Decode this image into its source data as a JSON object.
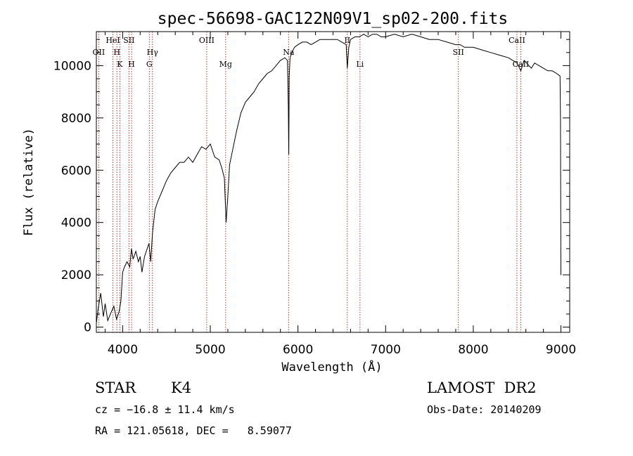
{
  "chart_data": {
    "type": "line",
    "title": "spec-56698-GAC122N09V1_sp02-200.fits",
    "xlabel": "Wavelength (Å)",
    "ylabel": "Flux (relative)",
    "xlim": [
      3700,
      9100
    ],
    "ylim": [
      -200,
      11300
    ],
    "x_ticks": [
      4000,
      5000,
      6000,
      7000,
      8000,
      9000
    ],
    "y_ticks": [
      0,
      2000,
      4000,
      6000,
      8000,
      10000
    ],
    "grid": false,
    "series": [
      {
        "x": [
          3700,
          3720,
          3750,
          3780,
          3800,
          3830,
          3860,
          3900,
          3930,
          3960,
          3980,
          4000,
          4020,
          4050,
          4080,
          4100,
          4120,
          4150,
          4180,
          4200,
          4220,
          4250,
          4270,
          4300,
          4320,
          4340,
          4370,
          4400,
          4450,
          4500,
          4550,
          4600,
          4650,
          4700,
          4750,
          4800,
          4850,
          4900,
          4950,
          5000,
          5050,
          5100,
          5130,
          5160,
          5180,
          5200,
          5220,
          5250,
          5300,
          5350,
          5400,
          5450,
          5500,
          5550,
          5600,
          5650,
          5700,
          5750,
          5800,
          5850,
          5880,
          5890,
          5895,
          5900,
          5910,
          5930,
          5960,
          6000,
          6050,
          6100,
          6150,
          6200,
          6250,
          6300,
          6350,
          6400,
          6450,
          6500,
          6550,
          6563,
          6580,
          6600,
          6650,
          6700,
          6750,
          6800,
          6850,
          6900,
          6950,
          7000,
          7100,
          7200,
          7300,
          7400,
          7500,
          7600,
          7700,
          7800,
          7850,
          7900,
          8000,
          8100,
          8200,
          8300,
          8400,
          8450,
          8500,
          8542,
          8580,
          8662,
          8700,
          8750,
          8800,
          8850,
          8900,
          8950,
          8990,
          8995,
          9000,
          9002
        ],
        "y": [
          150,
          700,
          1300,
          400,
          900,
          250,
          500,
          800,
          300,
          600,
          1000,
          2100,
          2300,
          2500,
          2300,
          3000,
          2600,
          2900,
          2500,
          2700,
          2100,
          2700,
          2900,
          3200,
          2500,
          3600,
          4500,
          4800,
          5200,
          5600,
          5900,
          6100,
          6300,
          6300,
          6500,
          6300,
          6600,
          6900,
          6800,
          7000,
          6500,
          6400,
          6100,
          5700,
          4000,
          5000,
          6200,
          6700,
          7500,
          8200,
          8600,
          8800,
          9000,
          9300,
          9500,
          9700,
          9800,
          10000,
          10200,
          10300,
          10200,
          8500,
          6600,
          9600,
          10300,
          10500,
          10700,
          10800,
          10900,
          10900,
          10800,
          10900,
          11000,
          11000,
          11000,
          11000,
          11000,
          10900,
          10800,
          9900,
          10700,
          11000,
          11100,
          11100,
          11200,
          11100,
          11200,
          11200,
          11100,
          11100,
          11200,
          11100,
          11200,
          11100,
          11000,
          11000,
          10900,
          10800,
          10800,
          10700,
          10700,
          10600,
          10500,
          10400,
          10300,
          10200,
          10100,
          9800,
          10200,
          9900,
          10100,
          10000,
          9900,
          9800,
          9800,
          9700,
          9600,
          8000,
          2000,
          2000
        ]
      }
    ],
    "line_markers": [
      {
        "wavelength": 3727,
        "label": "OII",
        "row": 2
      },
      {
        "wavelength": 3889,
        "label": "HeI",
        "row": 1
      },
      {
        "wavelength": 3934,
        "label": "H",
        "row": 2
      },
      {
        "wavelength": 3968,
        "label": "K",
        "row": 3
      },
      {
        "wavelength": 4072,
        "label": "SII",
        "row": 1
      },
      {
        "wavelength": 4102,
        "label": "H",
        "row": 3
      },
      {
        "wavelength": 4304,
        "label": "G",
        "row": 3
      },
      {
        "wavelength": 4340,
        "label": "Hγ",
        "row": 2
      },
      {
        "wavelength": 4959,
        "label": "OIII",
        "row": 1
      },
      {
        "wavelength": 5175,
        "label": "Mg",
        "row": 3
      },
      {
        "wavelength": 5893,
        "label": "Na",
        "row": 2
      },
      {
        "wavelength": 6563,
        "label": "II",
        "row": 1
      },
      {
        "wavelength": 6708,
        "label": "Li",
        "row": 3
      },
      {
        "wavelength": 7830,
        "label": "SII",
        "row": 2
      },
      {
        "wavelength": 8498,
        "label": "CaII",
        "row": 1
      },
      {
        "wavelength": 8542,
        "label": "CaII",
        "row": 3
      }
    ]
  },
  "info": {
    "object_class": "STAR",
    "subclass": "K4",
    "survey": "LAMOST  DR2",
    "redshift": "cz = −16.8 ± 11.4 km/s",
    "obs_date": "Obs-Date: 20140209",
    "coords": "RA = 121.05618, DEC =   8.59077"
  }
}
